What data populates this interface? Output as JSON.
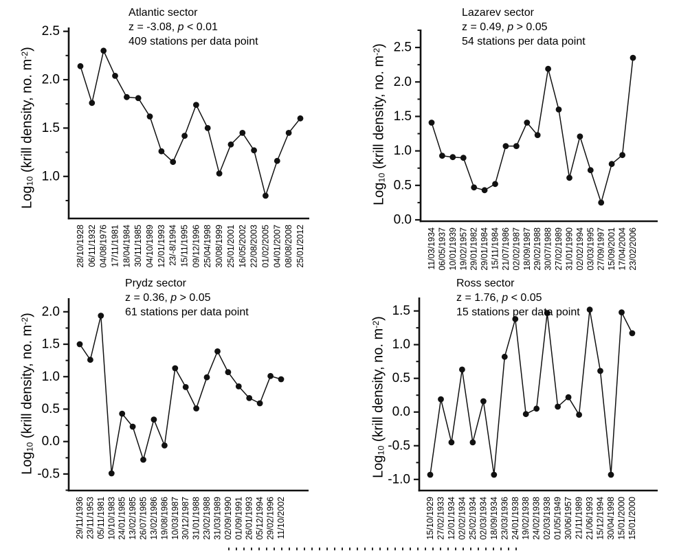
{
  "figure": {
    "ylabel": {
      "pre": "Log",
      "sub": "10",
      "mid": " (krill density, no. m",
      "sup": "-2",
      "post": ")"
    },
    "ylabel_plain": "Log10 (krill density, no. m-2)",
    "ink_color": "#111111"
  },
  "chart_data": [
    {
      "type": "line",
      "sector": "Atlantic sector",
      "stats": {
        "z_part": "z = -3.08, ",
        "p_italic": "p",
        "p_part": " < 0.01"
      },
      "stations": "409 stations per data point",
      "categories": [
        "28/10/1928",
        "06/11/1932",
        "04/08/1976",
        "17/11/1981",
        "18/04/1984",
        "30/11/1985",
        "04/10/1989",
        "12/01/1993",
        "23/-8/1994",
        "15/11/1995",
        "09/12/1996",
        "25/04/1998",
        "30/08/1999",
        "25/01/2001",
        "16/05/2002",
        "22/08/2003",
        "01/02/2005",
        "04/01/2007",
        "08/08/2008",
        "25/01/2012"
      ],
      "values": [
        2.14,
        1.76,
        2.3,
        2.04,
        1.82,
        1.81,
        1.62,
        1.26,
        1.15,
        1.42,
        1.74,
        1.5,
        1.03,
        1.33,
        1.45,
        1.27,
        0.8,
        1.16,
        1.45,
        1.6
      ],
      "ylim": [
        0.565,
        2.54
      ],
      "yticks": [
        1.0,
        1.5,
        2.0,
        2.5
      ],
      "minor_step": 0.25,
      "grid": false,
      "marker": "circle"
    },
    {
      "type": "line",
      "sector": "Lazarev sector",
      "stats": {
        "z_part": "z = 0.49, ",
        "p_italic": "p",
        "p_part": " > 0.05"
      },
      "stations": "54 stations per data point",
      "categories": [
        "11/03/1934",
        "06/05/1937",
        "10/01/1939",
        "19/02/1957",
        "29/01/1982",
        "29/01/1984",
        "15/11/1984",
        "21/07/1986",
        "02/02/1987",
        "18/09/1987",
        "29/02/1988",
        "30/07/1988",
        "27/02/1989",
        "31/01/1990",
        "02/02/1994",
        "03/03/1995",
        "27/09/1997",
        "15/09/2001",
        "17/04/2004",
        "23/02/2006"
      ],
      "values": [
        1.41,
        0.93,
        0.91,
        0.9,
        0.47,
        0.43,
        0.52,
        1.07,
        1.07,
        1.41,
        1.23,
        2.19,
        1.6,
        0.61,
        1.21,
        0.72,
        0.25,
        0.81,
        0.94,
        2.35
      ],
      "ylim": [
        -0.02,
        2.76
      ],
      "yticks": [
        0.0,
        0.5,
        1.0,
        1.5,
        2.0,
        2.5
      ],
      "minor_step": 0.25,
      "grid": false,
      "marker": "circle"
    },
    {
      "type": "line",
      "sector": "Prydz sector",
      "stats": {
        "z_part": "z = 0.36, ",
        "p_italic": "p",
        "p_part": " > 0.05"
      },
      "stations": "61 stations per data point",
      "categories": [
        "29/11/1936",
        "23/11/1953",
        "05/11/1981",
        "10/10/1983",
        "24/01/1985",
        "13/02/1985",
        "26/07/1985",
        "13/02/1986",
        "19/08/1986",
        "10/03/1987",
        "30/12/1987",
        "31/01/1988",
        "23/02/1988",
        "31/03/1989",
        "02/09/1990",
        "01/09/1991",
        "26/01/1993",
        "05/12/1994",
        "29/02/1996",
        "11/10/2002"
      ],
      "values": [
        1.5,
        1.26,
        1.94,
        -0.49,
        0.43,
        0.23,
        -0.28,
        0.34,
        -0.06,
        1.13,
        0.84,
        0.51,
        0.99,
        1.39,
        1.07,
        0.85,
        0.67,
        0.59,
        1.01,
        0.96
      ],
      "ylim": [
        -0.755,
        2.21
      ],
      "yticks": [
        -0.5,
        0.0,
        0.5,
        1.0,
        1.5,
        2.0
      ],
      "minor_step": 0.25,
      "grid": false,
      "marker": "circle"
    },
    {
      "type": "line",
      "sector": "Ross sector",
      "stats": {
        "z_part": "z = 1.76, ",
        "p_italic": "p",
        "p_part": " < 0.05"
      },
      "stations": "15 stations per data point",
      "categories": [
        "15/10/1929",
        "27/02/1933",
        "12/01/1934",
        "02/02/1934",
        "25/02/1934",
        "02/03/1934",
        "18/09/1934",
        "23/03/1936",
        "24/01/1938",
        "19/02/1938",
        "24/02/1938",
        "02/03/1938",
        "01/05/1949",
        "30/06/1957",
        "21/11/1989",
        "21/06/1993",
        "15/12/1994",
        "30/04/1998",
        "15/01/2000",
        "15/01/2000"
      ],
      "values": [
        -0.93,
        0.19,
        -0.45,
        0.63,
        -0.45,
        0.16,
        -0.93,
        0.82,
        1.38,
        -0.03,
        0.05,
        1.47,
        0.08,
        0.22,
        -0.04,
        1.52,
        0.61,
        -0.93,
        1.48,
        1.17
      ],
      "ylim": [
        -1.165,
        1.7
      ],
      "yticks": [
        -1.0,
        -0.5,
        0.0,
        0.5,
        1.0,
        1.5
      ],
      "minor_step": 0.25,
      "grid": false,
      "marker": "circle"
    }
  ]
}
